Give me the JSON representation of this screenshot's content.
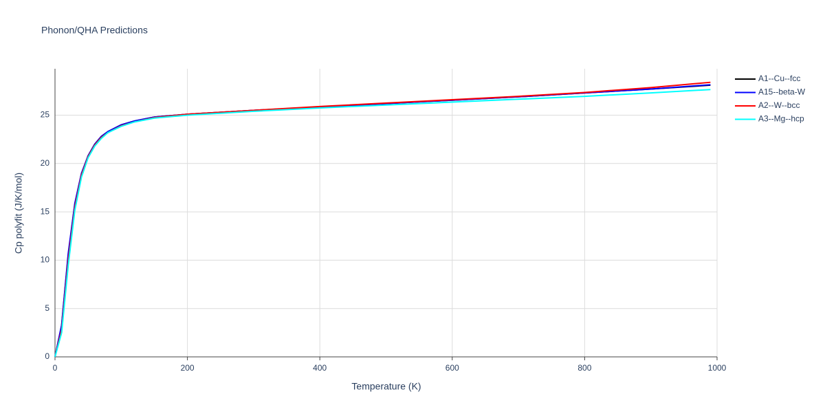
{
  "chart_data": {
    "type": "line",
    "title": "Phonon/QHA Predictions",
    "x_label": "Temperature (K)",
    "y_label": "Cp polyfit (J/K/mol)",
    "x": [
      0,
      10,
      20,
      30,
      40,
      50,
      60,
      70,
      80,
      100,
      120,
      150,
      200,
      300,
      400,
      500,
      600,
      700,
      800,
      900,
      990
    ],
    "series": [
      {
        "name": "A1--Cu--fcc",
        "color": "#000000",
        "values": [
          0,
          3.2,
          10.5,
          15.8,
          18.9,
          20.8,
          22.0,
          22.8,
          23.3,
          24.0,
          24.4,
          24.8,
          25.1,
          25.5,
          25.85,
          26.2,
          26.55,
          26.9,
          27.3,
          27.7,
          28.1
        ]
      },
      {
        "name": "A15--beta-W",
        "color": "#0000ff",
        "values": [
          0,
          3.3,
          10.7,
          15.9,
          19.0,
          20.8,
          22.0,
          22.8,
          23.3,
          24.0,
          24.4,
          24.8,
          25.1,
          25.5,
          25.85,
          26.2,
          26.55,
          26.9,
          27.3,
          27.7,
          28.15
        ]
      },
      {
        "name": "A2--W--bcc",
        "color": "#ff0000",
        "values": [
          0,
          2.8,
          10.0,
          15.5,
          18.8,
          20.7,
          21.9,
          22.7,
          23.2,
          23.9,
          24.3,
          24.75,
          25.1,
          25.5,
          25.9,
          26.25,
          26.6,
          26.95,
          27.35,
          27.85,
          28.4
        ]
      },
      {
        "name": "A3--Mg--hcp",
        "color": "#00ffff",
        "values": [
          0,
          2.5,
          9.5,
          15.2,
          18.6,
          20.6,
          21.8,
          22.6,
          23.2,
          23.85,
          24.3,
          24.7,
          25.0,
          25.4,
          25.75,
          26.05,
          26.35,
          26.65,
          26.95,
          27.3,
          27.65
        ]
      }
    ],
    "xlim": [
      0,
      1000
    ],
    "xticks": [
      0,
      200,
      400,
      600,
      800,
      1000
    ],
    "ylim": [
      0,
      29.8
    ],
    "yticks": [
      0,
      5,
      10,
      15,
      20,
      25
    ],
    "grid": true,
    "legend": "right"
  }
}
